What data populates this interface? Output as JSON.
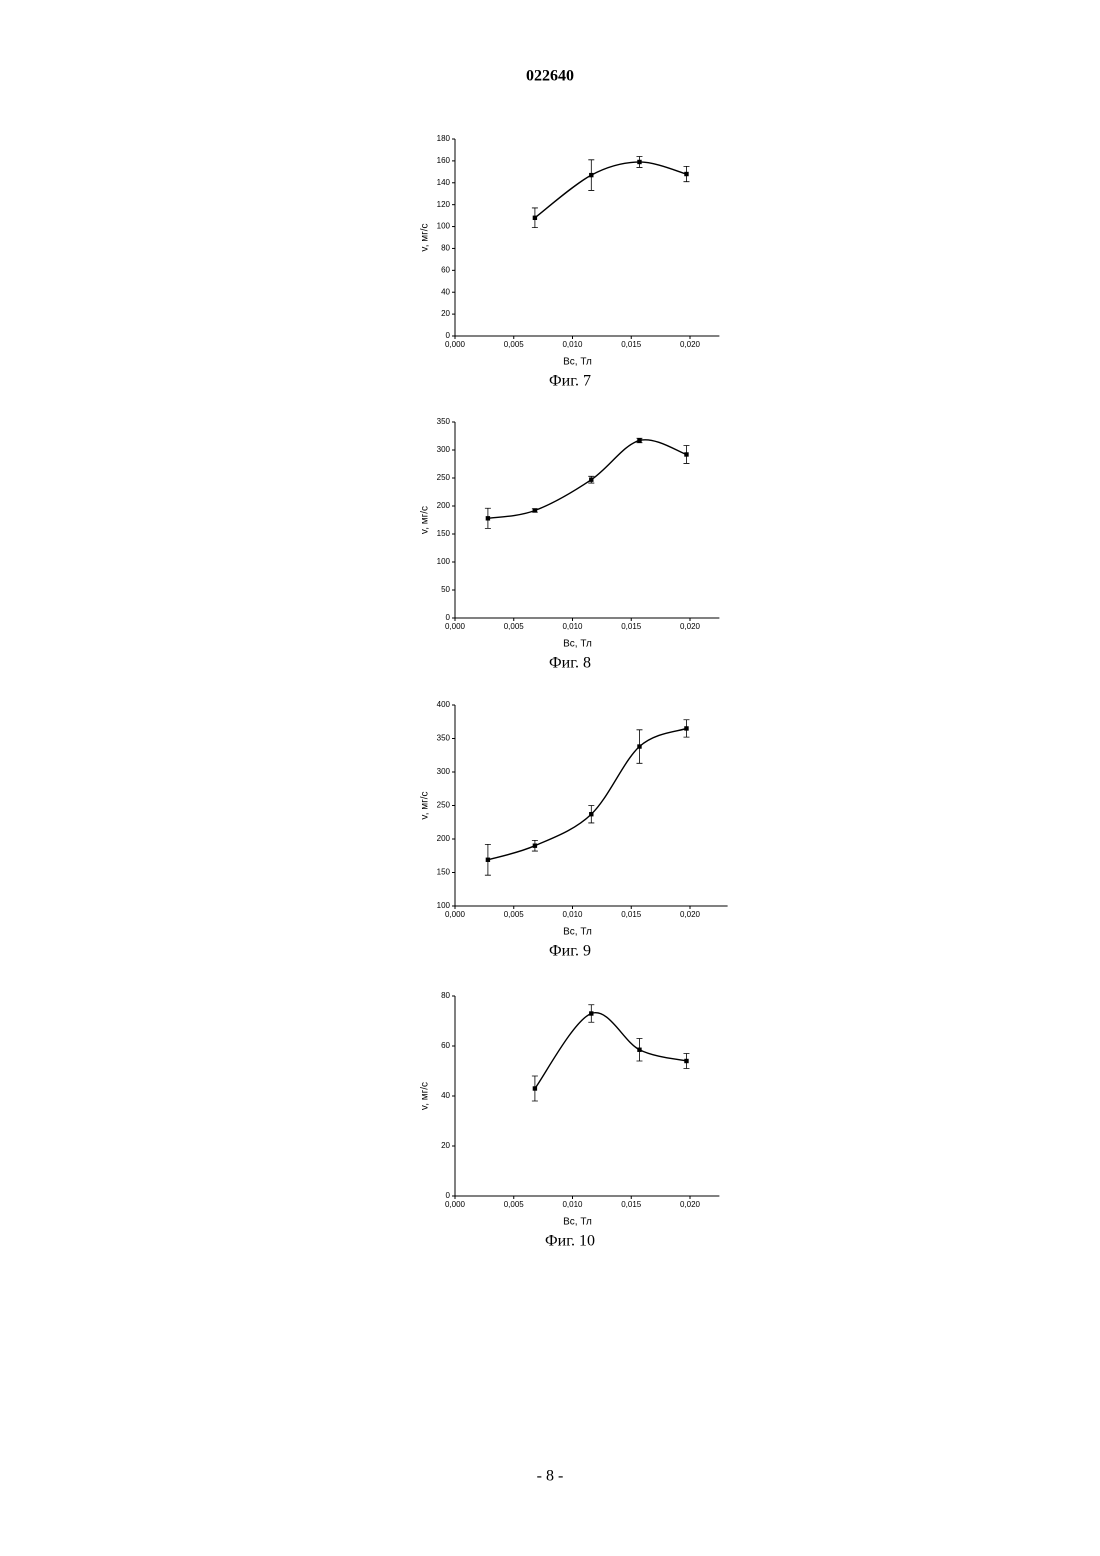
{
  "header": "022640",
  "footer": "- 8 -",
  "chart_data": [
    {
      "type": "line",
      "caption": "Фиг. 7",
      "xlabel": "Bc, Тл",
      "ylabel": "v, мг/с",
      "color": "#000000",
      "smooth": true,
      "x": [
        0.0068,
        0.0116,
        0.0157,
        0.0197
      ],
      "values": [
        108,
        147,
        159,
        148
      ],
      "errors": [
        9,
        14,
        5,
        7
      ],
      "xlim": [
        0,
        0.0225
      ],
      "xticks": [
        {
          "value": 0,
          "label": "0,000"
        },
        {
          "value": 0.005,
          "label": "0,005"
        },
        {
          "value": 0.01,
          "label": "0,010"
        },
        {
          "value": 0.015,
          "label": "0,015"
        },
        {
          "value": 0.02,
          "label": "0,020"
        }
      ],
      "ylim": [
        0,
        180
      ],
      "yticks": [
        0,
        20,
        40,
        60,
        80,
        100,
        120,
        140,
        160,
        180
      ]
    },
    {
      "type": "line",
      "caption": "Фиг. 8",
      "xlabel": "Bc, Тл",
      "ylabel": "v, мг/с",
      "color": "#000000",
      "smooth": true,
      "x": [
        0.0028,
        0.0068,
        0.0116,
        0.0157,
        0.0197
      ],
      "values": [
        178,
        192,
        247,
        317,
        292
      ],
      "errors": [
        18,
        3,
        6,
        4,
        16
      ],
      "xlim": [
        0,
        0.0225
      ],
      "xticks": [
        {
          "value": 0,
          "label": "0,000"
        },
        {
          "value": 0.005,
          "label": "0,005"
        },
        {
          "value": 0.01,
          "label": "0,010"
        },
        {
          "value": 0.015,
          "label": "0,015"
        },
        {
          "value": 0.02,
          "label": "0,020"
        }
      ],
      "ylim": [
        0,
        350
      ],
      "yticks": [
        0,
        50,
        100,
        150,
        200,
        250,
        300,
        350
      ]
    },
    {
      "type": "line",
      "caption": "Фиг. 9",
      "xlabel": "Bc, Тл",
      "ylabel": "v, мг/с",
      "color": "#000000",
      "smooth": true,
      "x": [
        0.0028,
        0.0068,
        0.0116,
        0.0157,
        0.0197
      ],
      "values": [
        169,
        190,
        237,
        338,
        365
      ],
      "errors": [
        23,
        8,
        13,
        25,
        13
      ],
      "xlim": [
        0,
        0.0232
      ],
      "xticks": [
        {
          "value": 0,
          "label": "0,000"
        },
        {
          "value": 0.005,
          "label": "0,005"
        },
        {
          "value": 0.01,
          "label": "0,010"
        },
        {
          "value": 0.015,
          "label": "0,015"
        },
        {
          "value": 0.02,
          "label": "0,020"
        }
      ],
      "ylim": [
        100,
        400
      ],
      "yticks": [
        100,
        150,
        200,
        250,
        300,
        350,
        400
      ]
    },
    {
      "type": "line",
      "caption": "Фиг. 10",
      "xlabel": "Bc, Тл",
      "ylabel": "v, мг/с",
      "color": "#000000",
      "smooth": true,
      "x": [
        0.0068,
        0.0116,
        0.0157,
        0.0197
      ],
      "values": [
        43,
        73,
        58.5,
        54
      ],
      "errors": [
        5,
        3.5,
        4.5,
        3
      ],
      "xlim": [
        0,
        0.0225
      ],
      "xticks": [
        {
          "value": 0,
          "label": "0,000"
        },
        {
          "value": 0.005,
          "label": "0,005"
        },
        {
          "value": 0.01,
          "label": "0,010"
        },
        {
          "value": 0.015,
          "label": "0,015"
        },
        {
          "value": 0.02,
          "label": "0,020"
        }
      ],
      "ylim": [
        0,
        80
      ],
      "yticks": [
        0,
        20,
        40,
        60,
        80
      ]
    }
  ]
}
